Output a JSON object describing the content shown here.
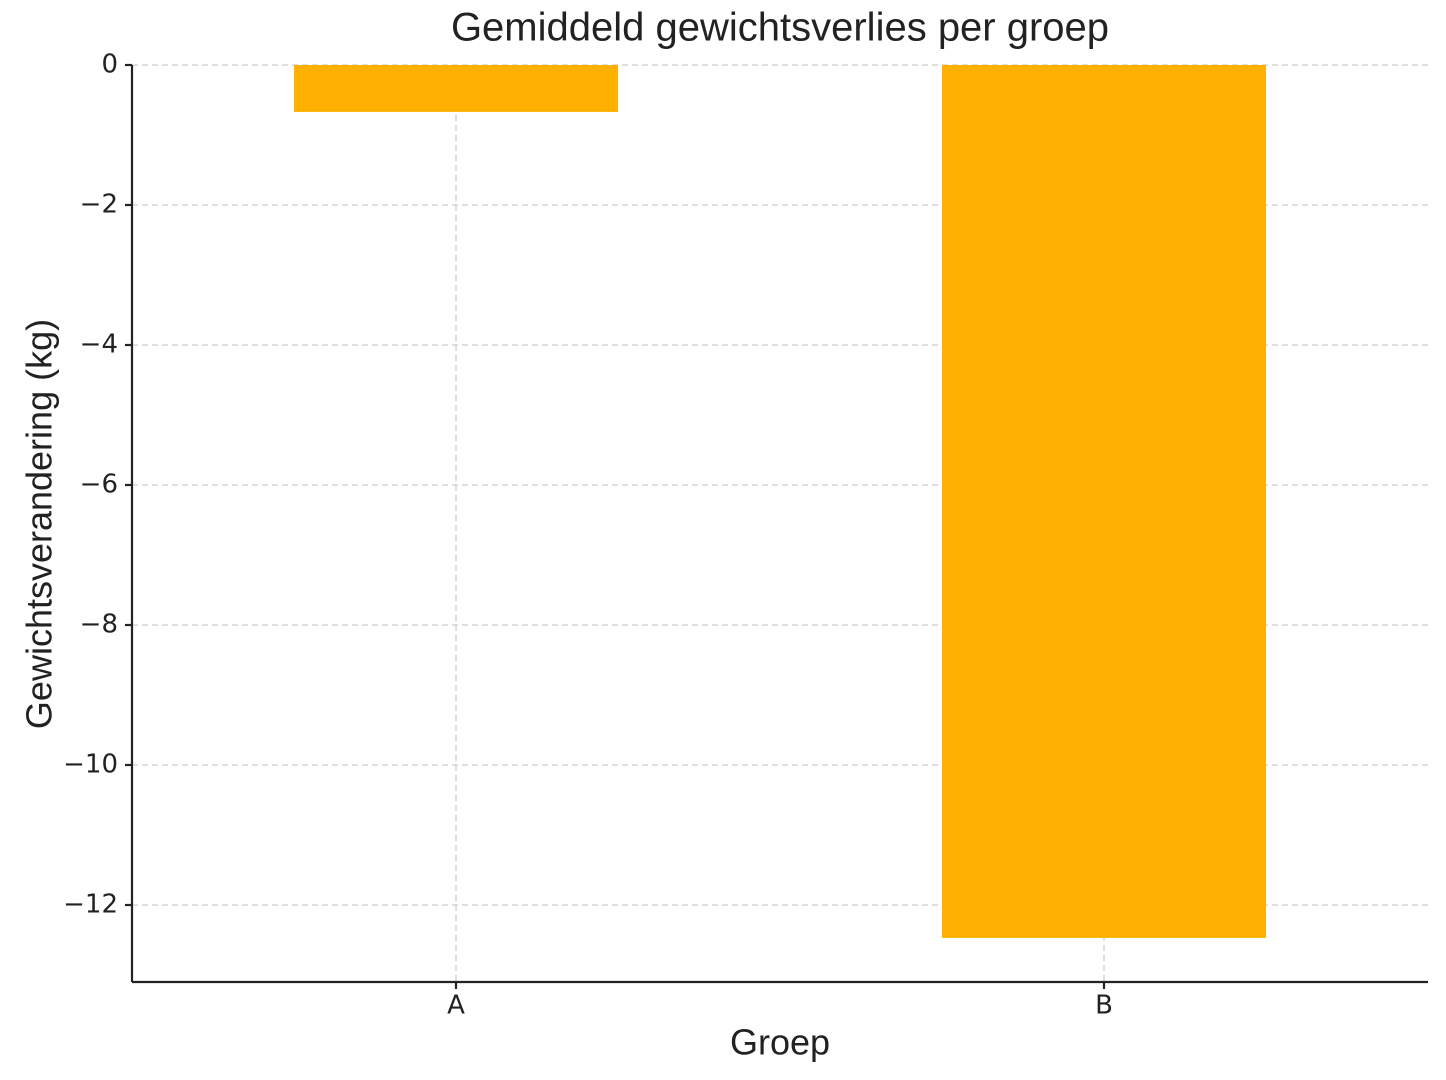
{
  "chart_data": {
    "type": "bar",
    "title": "Gemiddeld gewichtsverlies per groep",
    "x_label": "Groep",
    "y_label": "Gewichtsverandering (kg)",
    "categories": [
      "A",
      "B"
    ],
    "values": [
      -0.67,
      -12.47
    ],
    "color": "#ffb000",
    "ylim": [
      -13.1,
      0
    ],
    "yticks": [
      {
        "value": -12,
        "label": "−12"
      },
      {
        "value": -10,
        "label": "−10"
      },
      {
        "value": -8,
        "label": "−8"
      },
      {
        "value": -6,
        "label": "−6"
      },
      {
        "value": -4,
        "label": "−4"
      },
      {
        "value": -2,
        "label": "−2"
      },
      0
    ],
    "grid": true
  }
}
